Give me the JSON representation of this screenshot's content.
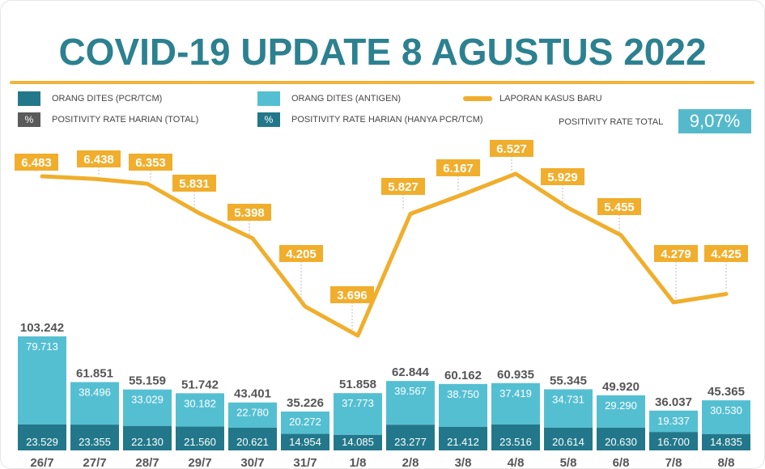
{
  "title": "COVID-19 UPDATE 8 AGUSTUS 2022",
  "legend": {
    "pcr": "ORANG DITES (PCR/TCM)",
    "antigen": "ORANG DITES (ANTIGEN)",
    "cases": "LAPORAN KASUS BARU",
    "pct_symbol": "%",
    "rate_total_daily": "POSITIVITY RATE HARIAN (TOTAL)",
    "rate_pcr_daily": "POSITIVITY RATE HARIAN (HANYA PCR/TCM)",
    "rate_total_label": "POSITIVITY RATE TOTAL",
    "rate_total_value": "9,07%"
  },
  "colors": {
    "pcr": "#22788a",
    "antigen": "#55bfd2",
    "cases": "#f0ae2c",
    "title": "#2c8190",
    "grey": "#5a5a5a"
  },
  "chart_data": {
    "type": "bar",
    "title": "COVID-19 UPDATE 8 AGUSTUS 2022",
    "categories": [
      "26/7",
      "27/7",
      "28/7",
      "29/7",
      "30/7",
      "31/7",
      "1/8",
      "2/8",
      "3/8",
      "4/8",
      "5/8",
      "6/8",
      "7/8",
      "8/8"
    ],
    "series": [
      {
        "name": "ORANG DITES (PCR/TCM)",
        "values": [
          23529,
          23355,
          22130,
          21560,
          20621,
          14954,
          14085,
          23277,
          21412,
          23516,
          20614,
          20630,
          16700,
          14835
        ],
        "labels": [
          "23.529",
          "23.355",
          "22.130",
          "21.560",
          "20.621",
          "14.954",
          "14.085",
          "23.277",
          "21.412",
          "23.516",
          "20.614",
          "20.630",
          "16.700",
          "14.835"
        ]
      },
      {
        "name": "ORANG DITES (ANTIGEN)",
        "values": [
          79713,
          38496,
          33029,
          30182,
          22780,
          20272,
          37773,
          39567,
          38750,
          37419,
          34731,
          29290,
          19337,
          30530
        ],
        "labels": [
          "79.713",
          "38.496",
          "33.029",
          "30.182",
          "22.780",
          "20.272",
          "37.773",
          "39.567",
          "38.750",
          "37.419",
          "34.731",
          "29.290",
          "19.337",
          "30.530"
        ]
      },
      {
        "name": "LAPORAN KASUS BARU",
        "type": "line",
        "values": [
          6483,
          6438,
          6353,
          5831,
          5398,
          4205,
          3696,
          5827,
          6167,
          6527,
          5929,
          5455,
          4279,
          4425
        ],
        "labels": [
          "6.483",
          "6.438",
          "6.353",
          "5.831",
          "5.398",
          "4.205",
          "3.696",
          "5.827",
          "6.167",
          "6.527",
          "5.929",
          "5.455",
          "4.279",
          "4.425"
        ]
      }
    ],
    "totals": {
      "values": [
        103242,
        61851,
        55159,
        51742,
        43401,
        35226,
        51858,
        62844,
        60162,
        60935,
        55345,
        49920,
        36037,
        45365
      ],
      "labels": [
        "103.242",
        "61.851",
        "55.159",
        "51.742",
        "43.401",
        "35.226",
        "51.858",
        "62.844",
        "60.162",
        "60.935",
        "55.345",
        "49.920",
        "36.037",
        "45.365"
      ]
    },
    "legend_position": "top",
    "grid": false
  }
}
